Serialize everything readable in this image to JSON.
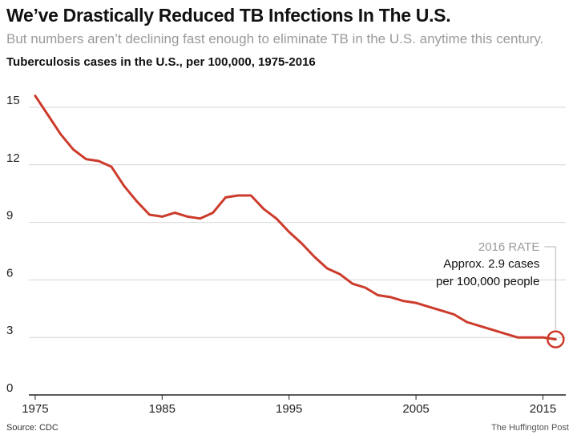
{
  "header": {
    "title": "We’ve Drastically Reduced TB Infections In The U.S.",
    "subtitle": "But numbers aren’t declining fast enough to eliminate TB in the U.S. anytime this century."
  },
  "footer": {
    "source": "Source: CDC",
    "credit": "The Huffington Post"
  },
  "chart_data": {
    "type": "line",
    "title": "Tuberculosis cases in the U.S., per 100,000, 1975-2016",
    "xlabel": "",
    "ylabel": "",
    "xlim": [
      1974.5,
      2016.8
    ],
    "ylim": [
      0,
      16
    ],
    "x_ticks": [
      1975,
      1985,
      1995,
      2005,
      2015
    ],
    "y_ticks": [
      0,
      3,
      6,
      9,
      12,
      15
    ],
    "grid": true,
    "line_color": "#cc3b2c",
    "series": [
      {
        "x": [
          1975,
          1976,
          1977,
          1978,
          1979,
          1980,
          1981,
          1982,
          1983,
          1984,
          1985,
          1986,
          1987,
          1988,
          1989,
          1990,
          1991,
          1992,
          1993,
          1994,
          1995,
          1996,
          1997,
          1998,
          1999,
          2000,
          2001,
          2002,
          2003,
          2004,
          2005,
          2006,
          2007,
          2008,
          2009,
          2010,
          2011,
          2012,
          2013,
          2014,
          2015,
          2016
        ],
        "values": [
          15.6,
          14.6,
          13.6,
          12.8,
          12.3,
          12.2,
          11.9,
          10.9,
          10.1,
          9.4,
          9.3,
          9.5,
          9.3,
          9.2,
          9.5,
          10.3,
          10.4,
          10.4,
          9.7,
          9.2,
          8.5,
          7.9,
          7.2,
          6.6,
          6.3,
          5.8,
          5.6,
          5.2,
          5.1,
          4.9,
          4.8,
          4.6,
          4.4,
          4.2,
          3.8,
          3.6,
          3.4,
          3.2,
          3.0,
          3.0,
          3.0,
          2.9
        ]
      }
    ],
    "annotation": {
      "x": 2016,
      "y": 2.9,
      "heading": "2016 RATE",
      "lines": [
        "Approx. 2.9 cases",
        "per 100,000 people"
      ]
    }
  }
}
